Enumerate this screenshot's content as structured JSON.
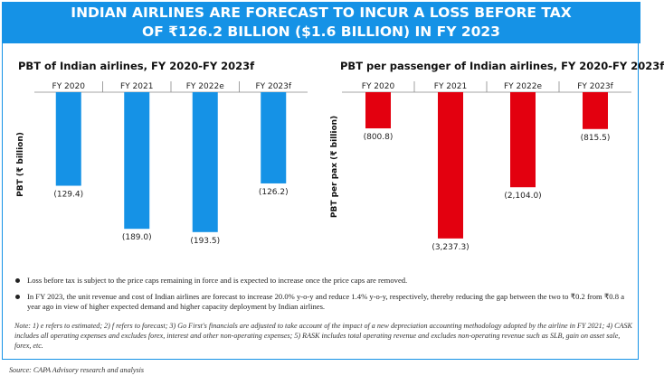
{
  "banner": {
    "line1": "INDIAN AIRLINES ARE FORECAST TO INCUR A LOSS BEFORE TAX",
    "line2": "OF ₹126.2 BILLION ($1.6 BILLION) IN FY 2023"
  },
  "chart_data": [
    {
      "type": "bar",
      "title": "PBT of Indian airlines, FY 2020-FY 2023f",
      "ylabel": "PBT (₹ billion)",
      "categories": [
        "FY 2020",
        "FY 2021",
        "FY 2022e",
        "FY 2023f"
      ],
      "values": [
        -129.4,
        -189.0,
        -193.5,
        -126.2
      ],
      "value_labels": [
        "(129.4)",
        "(189.0)",
        "(193.5)",
        "(126.2)"
      ],
      "ylim": [
        -200,
        0
      ],
      "color": "#1592e6",
      "category_axis": "top",
      "grid": false
    },
    {
      "type": "bar",
      "title": "PBT per passenger of Indian airlines, FY 2020-FY 2023f",
      "ylabel": "PBT per pax (₹ billion)",
      "categories": [
        "FY 2020",
        "FY 2021",
        "FY 2022e",
        "FY 2023f"
      ],
      "values": [
        -800.8,
        -3237.3,
        -2104.0,
        -815.5
      ],
      "value_labels": [
        "(800.8)",
        "(3,237.3)",
        "(2,104.0)",
        "(815.5)"
      ],
      "ylim": [
        -3300,
        0
      ],
      "color": "#e3000f",
      "category_axis": "top",
      "grid": false
    }
  ],
  "bullets": [
    "Loss before tax is subject to the price caps remaining in force and is expected to increase once the price caps are removed.",
    "In FY 2023, the unit revenue and cost of Indian airlines are forecast to increase 20.0% y-o-y and reduce 1.4% y-o-y, respectively, thereby reducing the gap between the two to ₹0.2 from ₹0.8 a year ago in view of higher expected demand and higher capacity deployment by Indian airlines."
  ],
  "note": "Note: 1) e refers to estimated; 2) f refers to forecast; 3) Go First's financials are adjusted to take account of the impact of a new depreciation accounting methodology adopted by the airline in FY 2021; 4) CASK includes all operating expenses and excludes forex, interest and other non-operating  expenses; 5) RASK includes total operating revenue and excludes non-operating revenue such as SLB, gain on asset sale, forex, etc.",
  "source": "Source: CAPA Advisory research and analysis"
}
